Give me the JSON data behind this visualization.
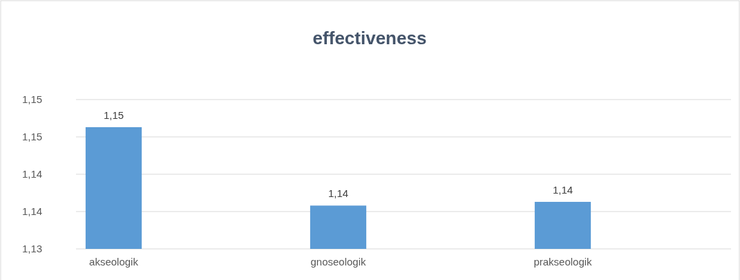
{
  "chart_data": {
    "type": "bar",
    "title": "effectiveness",
    "categories": [
      "akseologik",
      "gnoseologik",
      "prakseologik"
    ],
    "values": [
      1.1463,
      1.1358,
      1.1363
    ],
    "color": "#5b9bd5",
    "value_labels": [
      "1,15",
      "1,14",
      "1,14"
    ],
    "ylim": [
      1.13,
      1.15
    ],
    "yticks": [
      {
        "value": 1.13,
        "label": "1,13"
      },
      {
        "value": 1.135,
        "label": "1,14"
      },
      {
        "value": 1.14,
        "label": "1,14"
      },
      {
        "value": 1.145,
        "label": "1,15"
      },
      {
        "value": 1.15,
        "label": "1,15"
      }
    ],
    "grid": "y"
  }
}
